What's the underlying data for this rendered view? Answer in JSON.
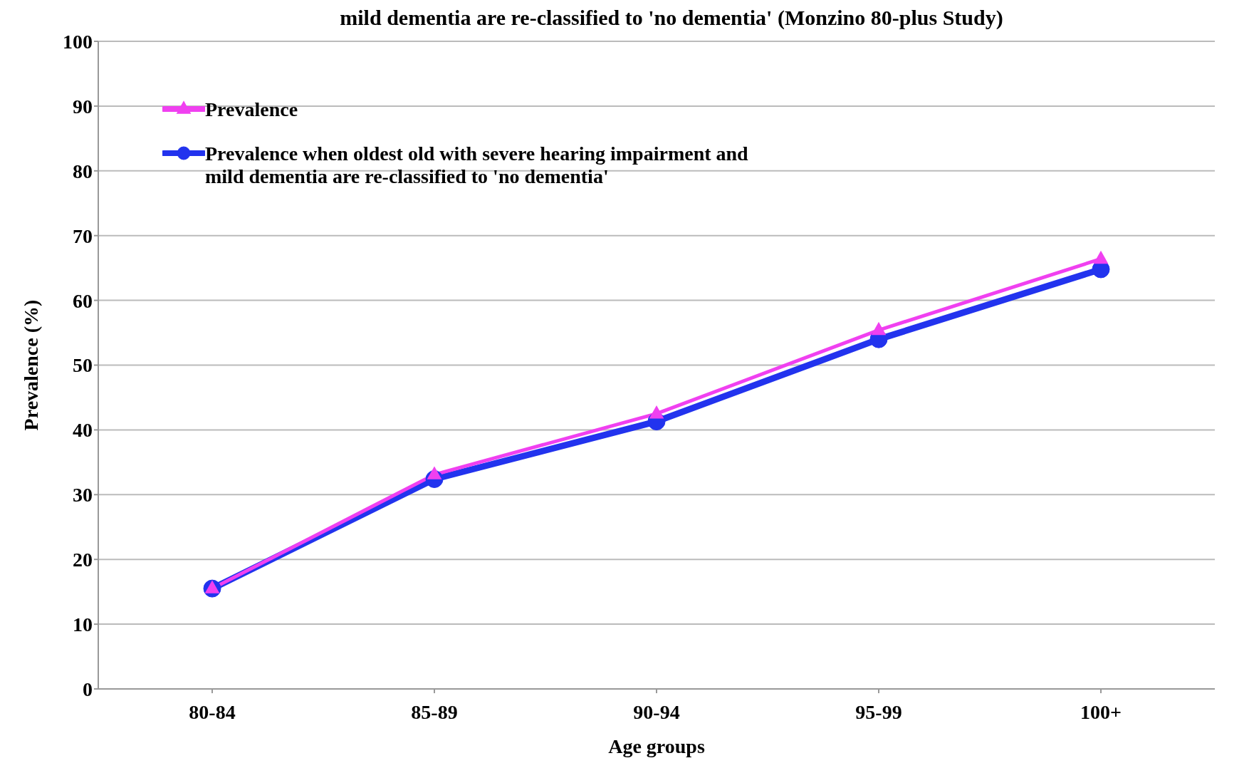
{
  "chart_data": {
    "type": "line",
    "title": "mild dementia are re-classified to 'no dementia' (Monzino 80-plus Study)",
    "xlabel": "Age groups",
    "ylabel": "Prevalence (%)",
    "categories": [
      "80-84",
      "85-89",
      "90-94",
      "95-99",
      "100+"
    ],
    "series": [
      {
        "name": "Prevalence",
        "color": "#f040f0",
        "marker": "triangle",
        "values": [
          15.5,
          33.1,
          42.5,
          55.4,
          66.4
        ]
      },
      {
        "name": "Prevalence when oldest old with severe hearing impairment and mild dementia are re-classified to 'no dementia'",
        "color": "#2233ee",
        "marker": "circle",
        "values": [
          15.5,
          32.4,
          41.3,
          54.0,
          64.8
        ]
      }
    ],
    "ylim": [
      0,
      100
    ],
    "yticks": [
      0,
      10,
      20,
      30,
      40,
      50,
      60,
      70,
      80,
      90,
      100
    ],
    "grid": "y",
    "legend": "top left",
    "line_style": "solid"
  }
}
